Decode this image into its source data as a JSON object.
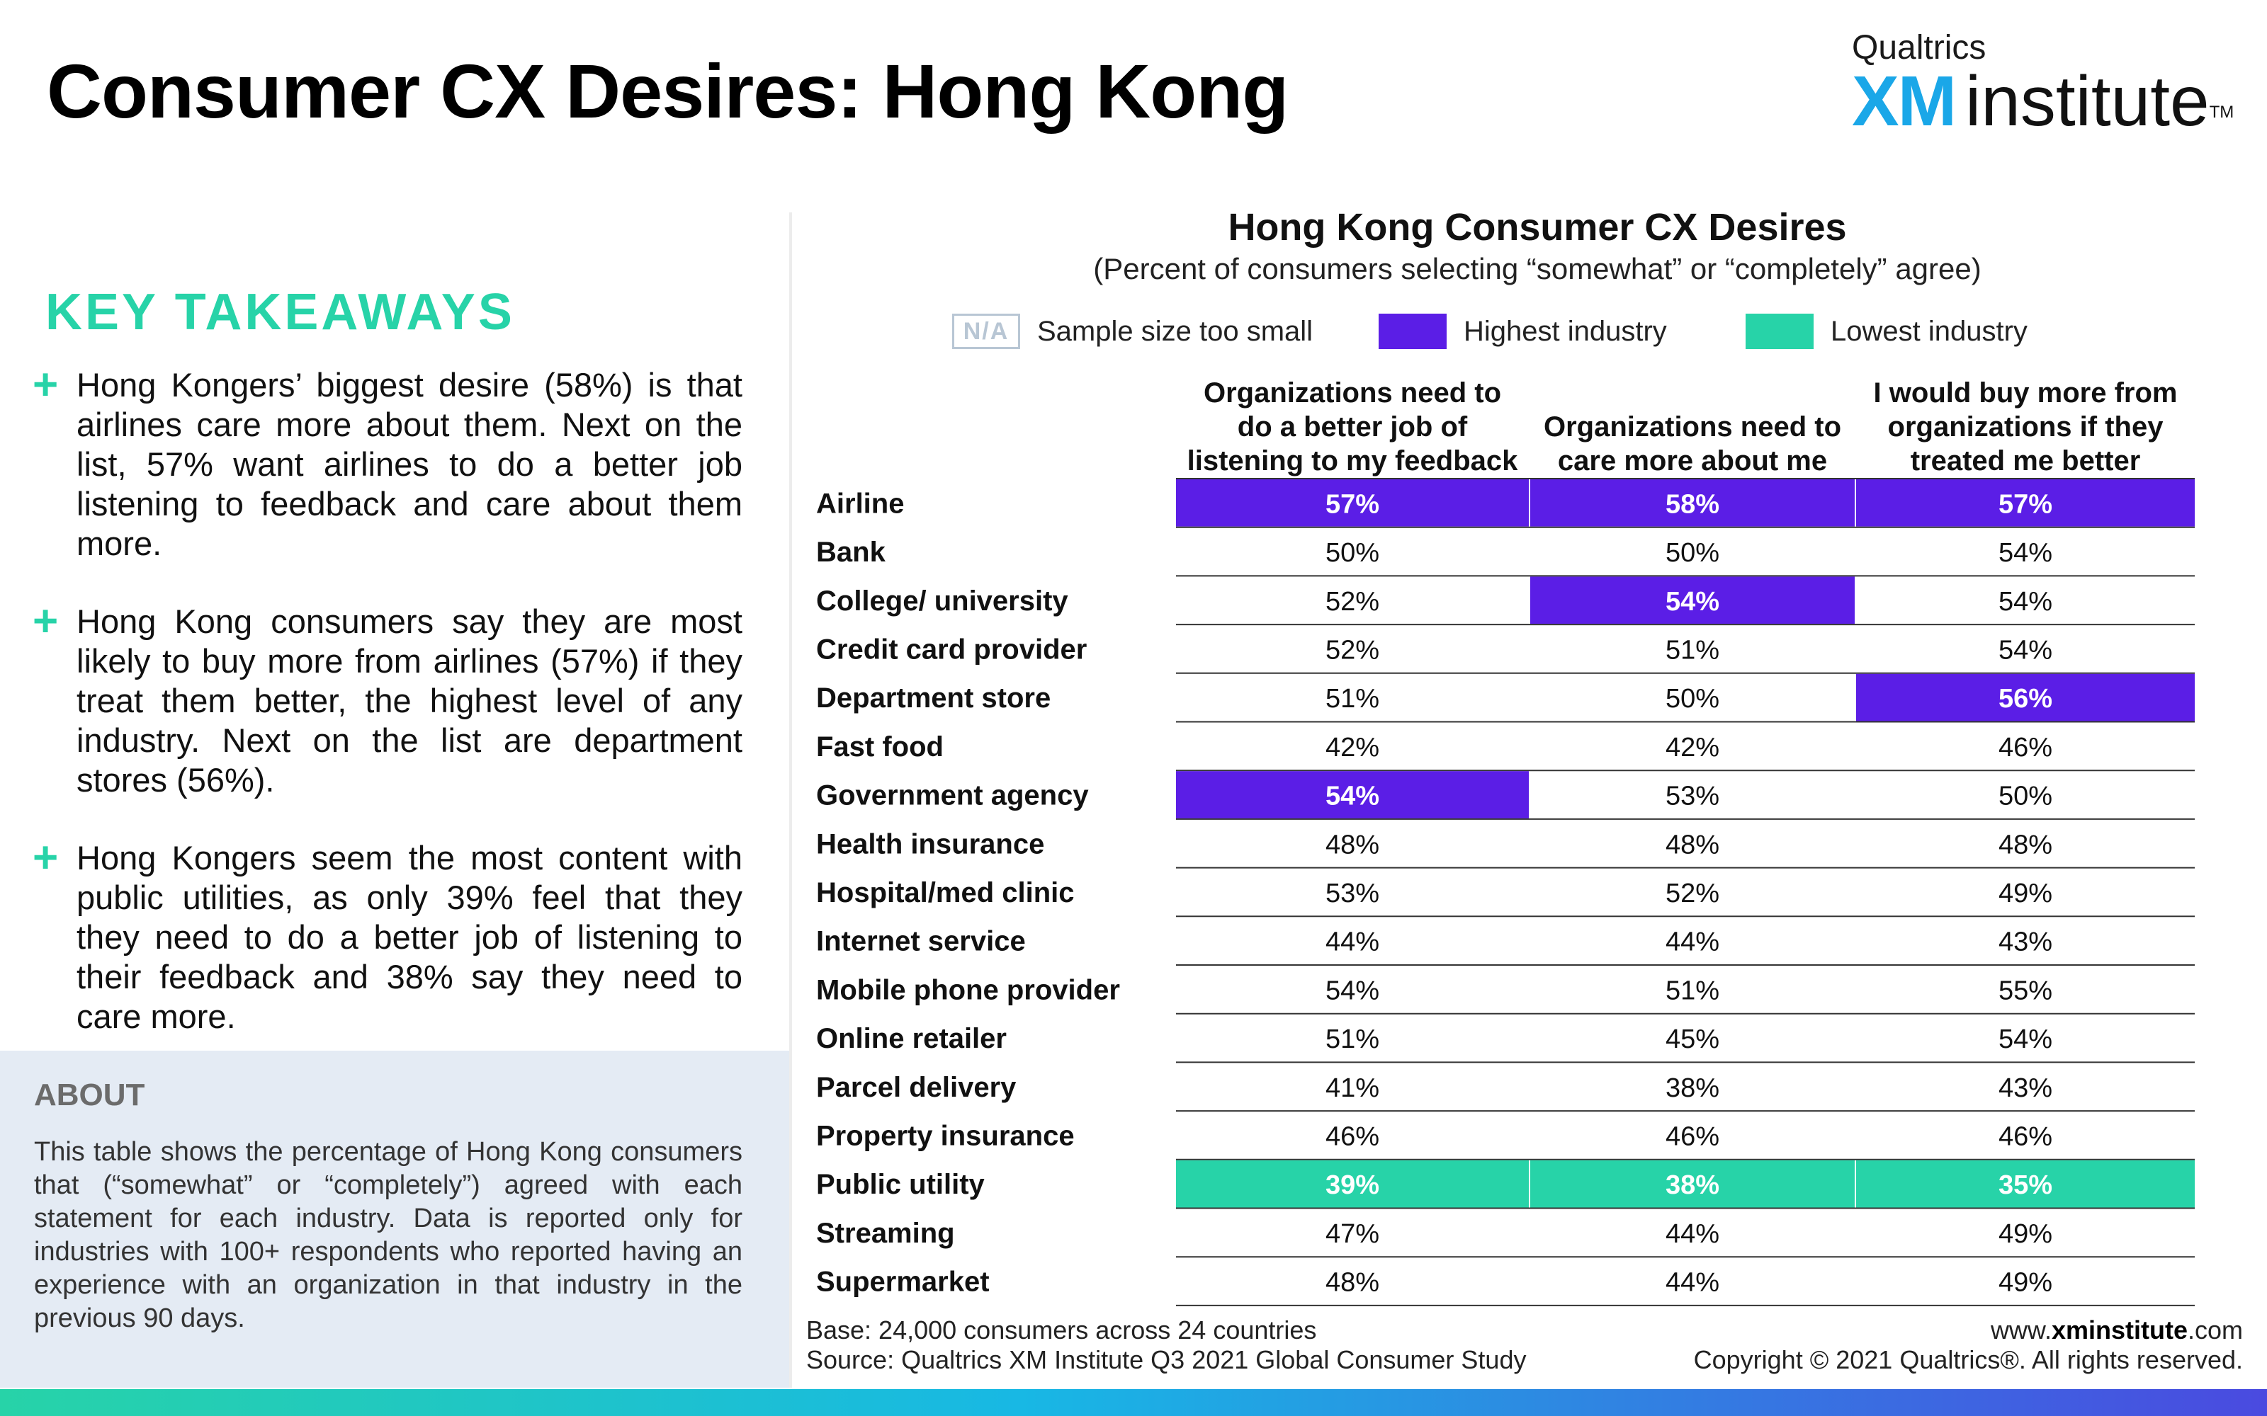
{
  "header": {
    "title": "Consumer CX Desires: Hong Kong",
    "logo_brand": "Qualtrics",
    "logo_xm": "XM",
    "logo_institute": "institute",
    "logo_tm": "TM"
  },
  "takeaways": {
    "heading": "KEY TAKEAWAYS",
    "marker": "+",
    "items": [
      "Hong Kongers’ biggest desire (58%) is that airlines care more about them. Next on the list, 57% want airlines to do a better job listening to feedback and care about them more.",
      "Hong Kong consumers say they are most likely to buy more from airlines (57%) if they treat them better, the highest level of any industry. Next on the list are department stores (56%).",
      "Hong Kongers seem the most content with public utilities, as only 39% feel that they they need to do a better job of listening to their feedback and 38% say they need to care more."
    ]
  },
  "about": {
    "heading": "ABOUT",
    "text": "This table shows the percentage of Hong Kong consumers that (“somewhat” or “completely”) agreed with each statement for each industry. Data is reported only for industries with 100+ respondents who reported having an experience with an organization in that industry in the previous 90 days."
  },
  "legend": {
    "na_label": "N/A",
    "na_text": "Sample size too small",
    "high_text": "Highest industry",
    "low_text": "Lowest industry"
  },
  "colors": {
    "highest": "#5b1ee6",
    "lowest": "#27d3a8",
    "accent": "#27d3a8"
  },
  "chart_data": {
    "type": "table",
    "title": "Hong Kong Consumer CX Desires",
    "subtitle": "(Percent of consumers selecting “somewhat” or “completely” agree)",
    "columns": [
      [
        "Organizations need to",
        "do a better job of",
        "listening to my feedback"
      ],
      [
        "Organizations need to",
        "care more about me"
      ],
      [
        "I would buy more from",
        "organizations if they",
        "treated me better"
      ]
    ],
    "unit": "%",
    "rows": [
      {
        "label": "Airline",
        "values": [
          57,
          58,
          57
        ],
        "flags": [
          "high",
          "high",
          "high"
        ]
      },
      {
        "label": "Bank",
        "values": [
          50,
          50,
          54
        ],
        "flags": [
          "",
          "",
          ""
        ]
      },
      {
        "label": "College/ university",
        "values": [
          52,
          54,
          54
        ],
        "flags": [
          "",
          "high",
          ""
        ]
      },
      {
        "label": "Credit card provider",
        "values": [
          52,
          51,
          54
        ],
        "flags": [
          "",
          "",
          ""
        ]
      },
      {
        "label": "Department store",
        "values": [
          51,
          50,
          56
        ],
        "flags": [
          "",
          "",
          "high"
        ]
      },
      {
        "label": "Fast food",
        "values": [
          42,
          42,
          46
        ],
        "flags": [
          "",
          "",
          ""
        ]
      },
      {
        "label": "Government agency",
        "values": [
          54,
          53,
          50
        ],
        "flags": [
          "high",
          "",
          ""
        ]
      },
      {
        "label": "Health insurance",
        "values": [
          48,
          48,
          48
        ],
        "flags": [
          "",
          "",
          ""
        ]
      },
      {
        "label": "Hospital/med clinic",
        "values": [
          53,
          52,
          49
        ],
        "flags": [
          "",
          "",
          ""
        ]
      },
      {
        "label": "Internet service",
        "values": [
          44,
          44,
          43
        ],
        "flags": [
          "",
          "",
          ""
        ]
      },
      {
        "label": "Mobile phone provider",
        "values": [
          54,
          51,
          55
        ],
        "flags": [
          "",
          "",
          ""
        ]
      },
      {
        "label": "Online retailer",
        "values": [
          51,
          45,
          54
        ],
        "flags": [
          "",
          "",
          ""
        ]
      },
      {
        "label": "Parcel delivery",
        "values": [
          41,
          38,
          43
        ],
        "flags": [
          "",
          "",
          ""
        ]
      },
      {
        "label": "Property insurance",
        "values": [
          46,
          46,
          46
        ],
        "flags": [
          "",
          "",
          ""
        ]
      },
      {
        "label": "Public utility",
        "values": [
          39,
          38,
          35
        ],
        "flags": [
          "low",
          "low",
          "low"
        ]
      },
      {
        "label": "Streaming",
        "values": [
          47,
          44,
          49
        ],
        "flags": [
          "",
          "",
          ""
        ]
      },
      {
        "label": "Supermarket",
        "values": [
          48,
          44,
          49
        ],
        "flags": [
          "",
          "",
          ""
        ]
      }
    ]
  },
  "footer": {
    "base": "Base: 24,000 consumers across 24 countries",
    "source": "Source: Qualtrics XM Institute Q3 2021 Global Consumer Study",
    "url_prefix": "www.",
    "url_bold": "xminstitute",
    "url_suffix": ".com",
    "copyright": "Copyright © 2021 Qualtrics®. All rights reserved."
  }
}
